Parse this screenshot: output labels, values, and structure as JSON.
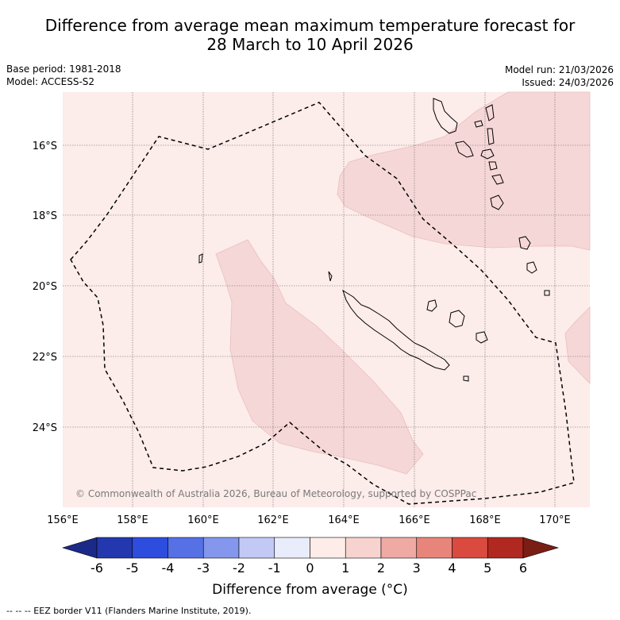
{
  "title_line1": "Difference from average mean maximum temperature forecast for",
  "title_line2": "28 March to 10 April 2026",
  "meta": {
    "base_period": "Base period: 1981-2018",
    "model": "Model: ACCESS-S2",
    "model_run": "Model run: 21/03/2026",
    "issued": "Issued: 24/03/2026"
  },
  "map": {
    "lon_ticks": [
      "156°E",
      "158°E",
      "160°E",
      "162°E",
      "164°E",
      "166°E",
      "168°E",
      "170°E"
    ],
    "lat_ticks": [
      "16°S",
      "18°S",
      "20°S",
      "22°S",
      "24°S"
    ],
    "copyright": "© Commonwealth of Australia 2026, Bureau of Meteorology, supported by COSPPac",
    "background_color": "#fcecea",
    "anomaly_color": "#f6d7d7"
  },
  "colorbar": {
    "ticks": [
      "-6",
      "-5",
      "-4",
      "-3",
      "-2",
      "-1",
      "0",
      "1",
      "2",
      "3",
      "4",
      "5",
      "6"
    ],
    "colors": [
      "#1b2a86",
      "#2338ae",
      "#2d4ddf",
      "#5670e6",
      "#8497ec",
      "#c2c9f5",
      "#e9ecfa",
      "#fdece7",
      "#f7d3cf",
      "#efaaa3",
      "#e8857b",
      "#da4a3f",
      "#b0281f",
      "#7a1d14"
    ],
    "label": "Difference from average (°C)"
  },
  "footer": "--  --  -- EEZ border V11 (Flanders Marine Institute, 2019)."
}
